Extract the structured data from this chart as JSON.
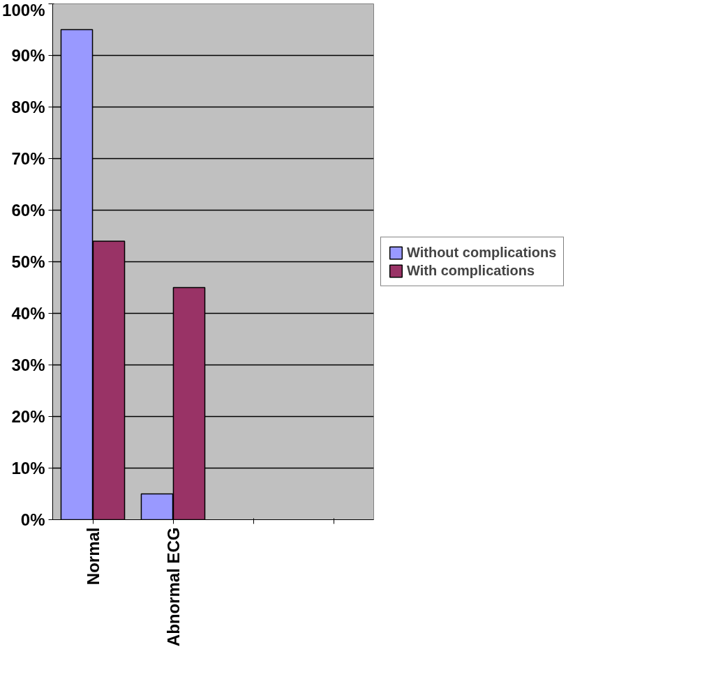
{
  "chart_data": {
    "type": "bar",
    "categories": [
      "Normal",
      "Abnormal ECG",
      null,
      null
    ],
    "series": [
      {
        "name": "Without complications",
        "color": "#9999ff",
        "values": [
          95,
          5,
          null,
          null
        ]
      },
      {
        "name": "With complications",
        "color": "#993366",
        "values": [
          54,
          45,
          null,
          null
        ]
      }
    ],
    "ylim": [
      0,
      100
    ],
    "yticks": [
      {
        "value": 0,
        "label": "0%"
      },
      {
        "value": 10,
        "label": "10%"
      },
      {
        "value": 20,
        "label": "20%"
      },
      {
        "value": 30,
        "label": "30%"
      },
      {
        "value": 40,
        "label": "40%"
      },
      {
        "value": 50,
        "label": "50%"
      },
      {
        "value": 60,
        "label": "60%"
      },
      {
        "value": 70,
        "label": "70%"
      },
      {
        "value": 80,
        "label": "80%"
      },
      {
        "value": 90,
        "label": "90%"
      },
      {
        "value": 100,
        "label": "100%"
      }
    ],
    "grid": "y",
    "legend": "right"
  }
}
